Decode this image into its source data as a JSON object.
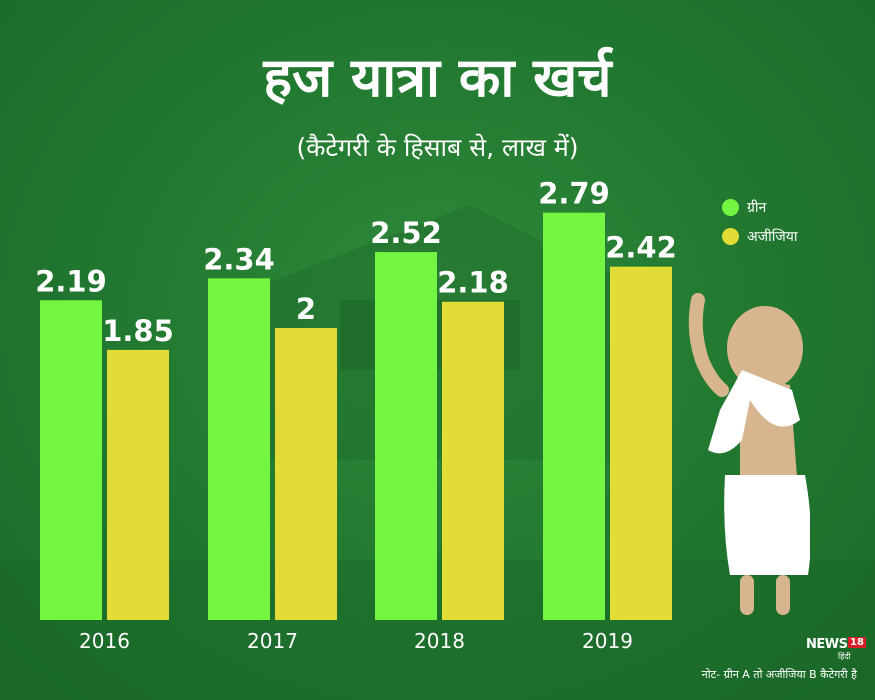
{
  "title": "हज यात्रा का खर्च",
  "subtitle": "(कैटेगरी के हिसाब से, लाख में)",
  "note": "नोट- ग्रीन A तो अजीजिया B कैटेगरी है",
  "logo": {
    "brand": "NEWS",
    "number": "18",
    "sub": "हिंदी"
  },
  "colors": {
    "green": "#74f542",
    "yellow": "#e2dc36",
    "background": "#237a31"
  },
  "chart_data": {
    "type": "bar",
    "title": "हज यात्रा का खर्च",
    "subtitle": "(कैटेगरी के हिसाब से, लाख में)",
    "xlabel": "",
    "ylabel": "",
    "ylim": [
      0,
      3.2
    ],
    "categories": [
      "2016",
      "2017",
      "2018",
      "2019"
    ],
    "series": [
      {
        "name": "ग्रीन",
        "color": "#74f542",
        "values": [
          2.19,
          2.34,
          2.52,
          2.79
        ],
        "labels": [
          "2.19",
          "2.34",
          "2.52",
          "2.79"
        ]
      },
      {
        "name": "अजीजिया",
        "color": "#e2dc36",
        "values": [
          1.85,
          2,
          2.18,
          2.42
        ],
        "labels": [
          "1.85",
          "2",
          "2.18",
          "2.42"
        ]
      }
    ],
    "legend_position": "top-right",
    "grid": false
  }
}
